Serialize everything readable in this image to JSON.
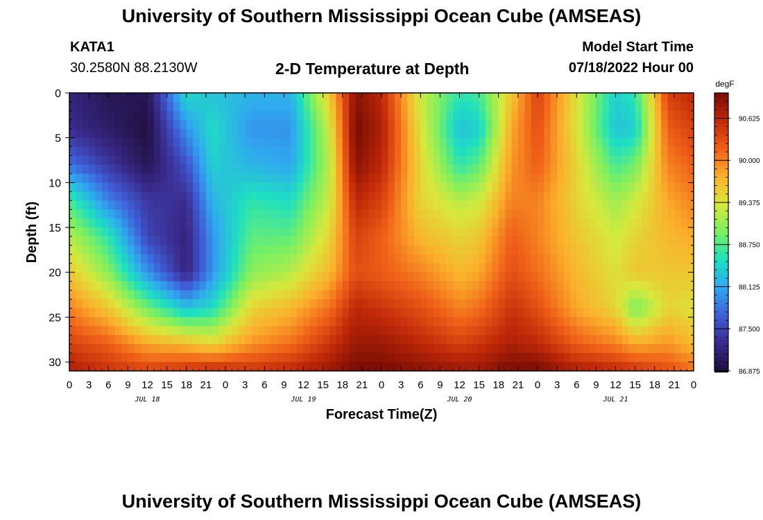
{
  "header": {
    "title": "University of Southern Mississippi Ocean Cube (AMSEAS)",
    "station": "KATA1",
    "coordinates": "30.2580N  88.2130W",
    "subtitle": "2-D Temperature at Depth",
    "model_start_label": "Model Start Time",
    "model_start_value": "07/18/2022 Hour 00"
  },
  "footer": {
    "title": "University of Southern Mississippi Ocean Cube (AMSEAS)"
  },
  "chart_data": {
    "type": "heatmap",
    "title": "2-D Temperature at Depth",
    "xlabel": "Forecast Time(Z)",
    "ylabel": "Depth (ft)",
    "x_hours_range": [
      0,
      96
    ],
    "x_tick_labels": [
      "0",
      "3",
      "6",
      "9",
      "12",
      "15",
      "18",
      "21",
      "0",
      "3",
      "6",
      "9",
      "12",
      "15",
      "18",
      "21",
      "0",
      "3",
      "6",
      "9",
      "12",
      "15",
      "18",
      "21",
      "0",
      "3",
      "6",
      "9",
      "12",
      "15",
      "18",
      "21",
      "0"
    ],
    "date_labels": [
      {
        "text": "JUL 18",
        "hour": 12
      },
      {
        "text": "JUL 19",
        "hour": 36
      },
      {
        "text": "JUL 20",
        "hour": 60
      },
      {
        "text": "JUL 21",
        "hour": 84
      }
    ],
    "y_range": [
      0,
      31
    ],
    "y_ticks": [
      0,
      5,
      10,
      15,
      20,
      25,
      30
    ],
    "colorbar": {
      "unit": "degF",
      "min": 86.875,
      "max": 91.0,
      "ticks": [
        "86.875",
        "87.500",
        "88.125",
        "88.750",
        "89.375",
        "90.000",
        "90.625"
      ],
      "colors": [
        "#1e0e3c",
        "#3a2a8c",
        "#3f5fd8",
        "#30a8f0",
        "#1ee0c0",
        "#7cf060",
        "#d8e83c",
        "#fbb02c",
        "#f06018",
        "#c02808",
        "#780c04"
      ]
    },
    "temperature_field": {
      "description": "Temperature (degF) vs forecast hour (x) and depth in ft (y)",
      "hours": [
        0,
        6,
        12,
        18,
        22,
        28,
        34,
        40,
        44,
        48,
        54,
        60,
        63,
        68,
        72,
        78,
        84,
        87,
        92,
        96
      ],
      "depths": [
        0,
        4,
        8,
        12,
        16,
        20,
        24,
        28,
        31
      ],
      "values": [
        [
          87.2,
          87.0,
          87.0,
          88.5,
          88.3,
          88.2,
          88.2,
          89.6,
          90.9,
          90.6,
          89.3,
          88.6,
          88.7,
          89.6,
          90.4,
          89.4,
          88.4,
          88.6,
          90.4,
          90.6
        ],
        [
          87.3,
          87.1,
          86.9,
          88.0,
          88.5,
          88.0,
          88.0,
          89.3,
          91.0,
          90.7,
          89.4,
          88.3,
          88.4,
          89.8,
          90.3,
          89.4,
          88.3,
          88.4,
          90.2,
          90.4
        ],
        [
          87.8,
          87.4,
          87.0,
          87.6,
          88.4,
          88.2,
          88.1,
          89.2,
          90.9,
          90.6,
          89.5,
          88.6,
          88.8,
          89.9,
          90.2,
          89.5,
          88.7,
          88.9,
          90.0,
          90.2
        ],
        [
          88.7,
          87.9,
          87.4,
          87.3,
          88.2,
          88.6,
          88.5,
          89.3,
          90.6,
          90.4,
          89.5,
          89.2,
          89.3,
          90.0,
          90.0,
          89.5,
          89.1,
          89.3,
          89.8,
          90.0
        ],
        [
          89.2,
          88.6,
          87.5,
          87.2,
          88.0,
          88.8,
          88.8,
          89.5,
          90.4,
          90.2,
          89.7,
          89.5,
          89.6,
          90.2,
          90.0,
          89.6,
          89.3,
          89.5,
          89.7,
          89.8
        ],
        [
          89.6,
          89.0,
          88.0,
          87.2,
          88.0,
          89.0,
          89.2,
          89.7,
          90.3,
          90.2,
          90.0,
          89.7,
          89.8,
          90.3,
          90.1,
          89.7,
          89.4,
          89.6,
          89.6,
          89.6
        ],
        [
          90.0,
          89.6,
          88.9,
          88.3,
          88.5,
          89.5,
          89.7,
          90.1,
          90.6,
          90.5,
          90.3,
          90.0,
          90.1,
          90.5,
          90.3,
          89.8,
          89.5,
          88.9,
          89.5,
          89.4
        ],
        [
          90.4,
          90.2,
          89.8,
          89.7,
          89.5,
          89.9,
          90.1,
          90.5,
          90.8,
          90.8,
          90.6,
          90.4,
          90.5,
          90.7,
          90.6,
          90.2,
          90.0,
          89.8,
          89.9,
          89.7
        ],
        [
          90.7,
          90.5,
          90.4,
          90.5,
          90.6,
          90.5,
          90.6,
          90.8,
          91.0,
          91.0,
          90.9,
          90.8,
          90.8,
          91.0,
          91.0,
          90.7,
          90.6,
          90.5,
          90.3,
          90.1
        ]
      ]
    }
  }
}
